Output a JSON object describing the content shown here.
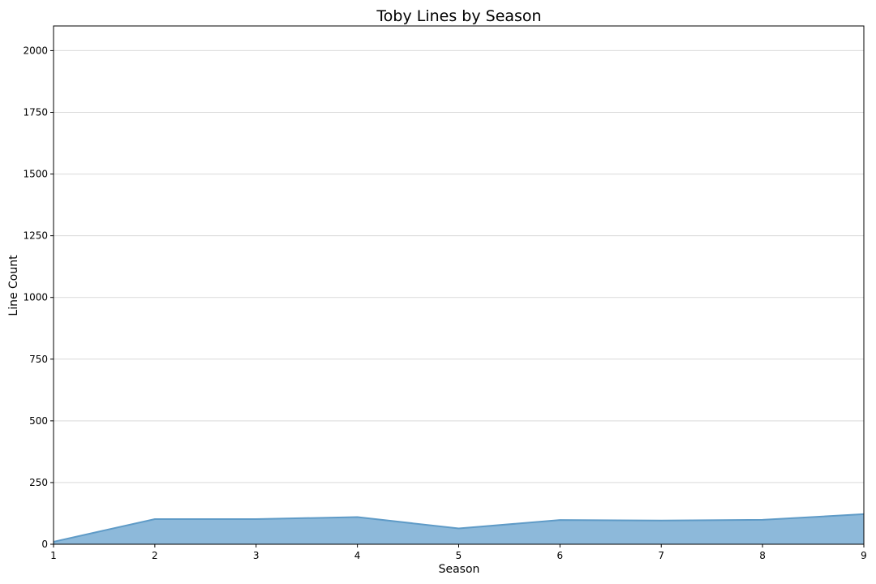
{
  "chart_data": {
    "type": "area",
    "title": "Toby Lines by Season",
    "xlabel": "Season",
    "ylabel": "Line Count",
    "x": [
      1,
      2,
      3,
      4,
      5,
      6,
      7,
      8,
      9
    ],
    "values": [
      10,
      102,
      102,
      110,
      64,
      98,
      96,
      99,
      122
    ],
    "xlim": [
      1,
      9
    ],
    "ylim": [
      0,
      2100
    ],
    "xticks": [
      1,
      2,
      3,
      4,
      5,
      6,
      7,
      8,
      9
    ],
    "yticks": [
      0,
      250,
      500,
      750,
      1000,
      1250,
      1500,
      1750,
      2000
    ],
    "grid": "horizontal",
    "colors": {
      "fill": "#8db9da",
      "line": "#5f9bc7"
    }
  }
}
